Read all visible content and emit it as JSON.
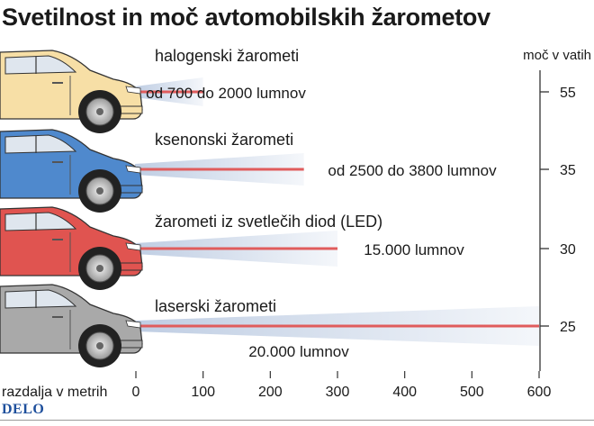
{
  "title": "Svetilnost in moč avtomobilskih žarometov",
  "source": "DELO",
  "chart_data": {
    "type": "bar",
    "title": "Svetilnost in moč avtomobilskih žarometov",
    "xlabel": "razdalja v metrih",
    "y2label": "moč v vatih",
    "xlim": [
      0,
      600
    ],
    "xticks": [
      0,
      100,
      200,
      300,
      400,
      500,
      600
    ],
    "grid": false,
    "categories": [
      "halogenski žarometi",
      "ksenonski žarometi",
      "žarometi iz svetlečih diod (LED)",
      "laserski žarometi"
    ],
    "series": [
      {
        "name": "razdalja v metrih",
        "values": [
          100,
          250,
          300,
          600
        ]
      },
      {
        "name": "moč v vatih",
        "values": [
          55,
          35,
          30,
          25
        ]
      }
    ],
    "annotations": [
      "od 700 do 2000 lumnov",
      "od 2500 do 3800 lumnov",
      "15.000 lumnov",
      "20.000 lumnov"
    ],
    "car_colors": [
      "#f7dfa6",
      "#4f89cd",
      "#e05450",
      "#a9a9a9"
    ],
    "beam_line_color": "#e05c5c",
    "beam_glow_color": "#b8c8e0"
  }
}
